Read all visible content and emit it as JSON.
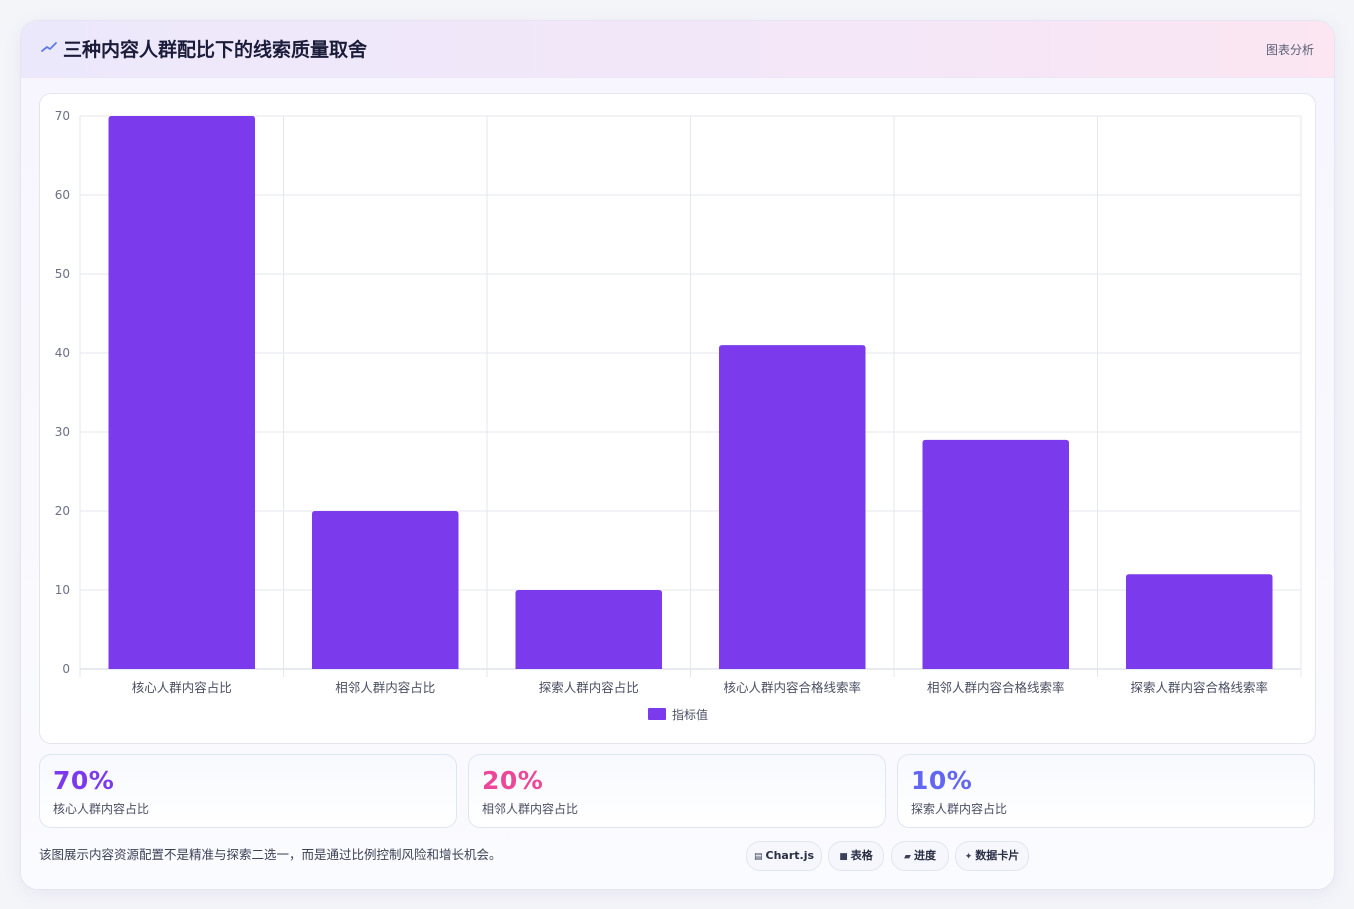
{
  "header": {
    "title": "三种内容人群配比下的线索质量取舍",
    "tag": "图表分析"
  },
  "colors": {
    "bar": "#7c3aed",
    "stat1": "#7c3aed",
    "stat2": "#ec4899",
    "stat3": "#6366f1",
    "spark": "#5b7be8"
  },
  "chart_data": {
    "type": "bar",
    "categories": [
      "核心人群内容占比",
      "相邻人群内容占比",
      "探索人群内容占比",
      "核心人群内容合格线索率",
      "相邻人群内容合格线索率",
      "探索人群内容合格线索率"
    ],
    "series": [
      {
        "name": "指标值",
        "values": [
          70,
          20,
          10,
          41,
          29,
          12
        ]
      }
    ],
    "ylim": [
      0,
      70
    ],
    "yticks": [
      0,
      10,
      20,
      30,
      40,
      50,
      60,
      70
    ],
    "grid": true,
    "legend": "bottom"
  },
  "stats": [
    {
      "value": "70%",
      "label": "核心人群内容占比"
    },
    {
      "value": "20%",
      "label": "相邻人群内容占比"
    },
    {
      "value": "10%",
      "label": "探索人群内容占比"
    }
  ],
  "footnote": "该图展示内容资源配置不是精准与探索二选一，而是通过比例控制风险和增长机会。",
  "pills": [
    {
      "icon": "chart-icon",
      "glyph": "▤",
      "label": "Chart.js"
    },
    {
      "icon": "table-icon",
      "glyph": "■",
      "label": "表格"
    },
    {
      "icon": "progress-icon",
      "glyph": "▰",
      "label": "进度"
    },
    {
      "icon": "sparkle-icon",
      "glyph": "✦",
      "label": "数据卡片"
    }
  ]
}
